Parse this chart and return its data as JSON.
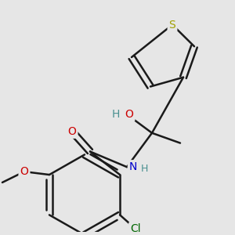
{
  "bg_color": "#e6e6e6",
  "bond_color": "#1a1a1a",
  "bond_width": 1.8,
  "atom_colors": {
    "S": "#a0a000",
    "O": "#cc0000",
    "N": "#0000cc",
    "Cl": "#006600",
    "C": "#1a1a1a",
    "H_color": "#4a9090"
  },
  "font_size": 10,
  "font_size_small": 8.5
}
